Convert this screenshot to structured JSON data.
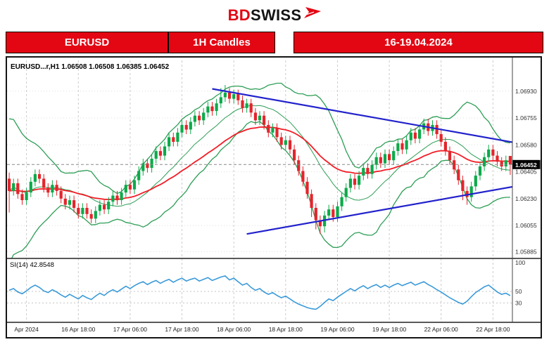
{
  "header": {
    "logo_bd": "BD",
    "logo_swiss": "SWISS"
  },
  "banner": {
    "symbol": "EURUSD",
    "timeframe": "1H Candles",
    "date_range": "16-19.04.2024"
  },
  "chart": {
    "info_label": "EURUSD...r,H1 1.06508 1.06508 1.06385 1.06452"
  },
  "chart_data": {
    "type": "candlestick",
    "title": "EURUSD 1H Candles 16-19.04.2024",
    "symbol": "EURUSD",
    "timeframe": "H1",
    "ohlc_display": {
      "open": "1.06508",
      "high": "1.06508",
      "low": "1.06385",
      "close": "1.06452"
    },
    "current_price": "1.06452",
    "x_axis": {
      "labels": [
        "Apr 2024",
        "16 Apr 18:00",
        "17 Apr 06:00",
        "17 Apr 18:00",
        "18 Apr 06:00",
        "18 Apr 18:00",
        "19 Apr 06:00",
        "19 Apr 18:00",
        "22 Apr 06:00",
        "22 Apr 18:00"
      ],
      "label_indices": [
        4,
        16,
        28,
        40,
        52,
        64,
        76,
        88,
        100,
        112
      ]
    },
    "y_axis": {
      "tick_labels": [
        "1.06930",
        "1.06755",
        "1.06580",
        "1.06405",
        "1.06230",
        "1.06055",
        "1.05885"
      ],
      "range": [
        1.0585,
        1.0713
      ]
    },
    "candles": [
      [
        1.0636,
        1.064,
        1.0614,
        1.0628
      ],
      [
        1.0628,
        1.0636,
        1.0625,
        1.0633
      ],
      [
        1.0633,
        1.0636,
        1.0623,
        1.0626
      ],
      [
        1.0626,
        1.0629,
        1.0619,
        1.0622
      ],
      [
        1.0622,
        1.063,
        1.0619,
        1.0627
      ],
      [
        1.0627,
        1.0637,
        1.0624,
        1.0634
      ],
      [
        1.0634,
        1.0642,
        1.0631,
        1.0639
      ],
      [
        1.0639,
        1.0642,
        1.0633,
        1.0636
      ],
      [
        1.0636,
        1.0639,
        1.0627,
        1.063
      ],
      [
        1.063,
        1.0633,
        1.0624,
        1.0627
      ],
      [
        1.0627,
        1.0635,
        1.0624,
        1.0632
      ],
      [
        1.0632,
        1.0635,
        1.0625,
        1.0628
      ],
      [
        1.0628,
        1.0631,
        1.062,
        1.0623
      ],
      [
        1.0623,
        1.0626,
        1.0616,
        1.0619
      ],
      [
        1.0619,
        1.0625,
        1.0616,
        1.0622
      ],
      [
        1.0622,
        1.0625,
        1.0614,
        1.0617
      ],
      [
        1.0617,
        1.062,
        1.061,
        1.0613
      ],
      [
        1.0613,
        1.062,
        1.061,
        1.0617
      ],
      [
        1.0617,
        1.062,
        1.061,
        1.0613
      ],
      [
        1.0613,
        1.0616,
        1.0607,
        1.061
      ],
      [
        1.061,
        1.0618,
        1.0607,
        1.0615
      ],
      [
        1.0615,
        1.0622,
        1.0612,
        1.0619
      ],
      [
        1.0619,
        1.0622,
        1.0613,
        1.0616
      ],
      [
        1.0616,
        1.0624,
        1.0613,
        1.0621
      ],
      [
        1.0621,
        1.0628,
        1.0618,
        1.0625
      ],
      [
        1.0625,
        1.0628,
        1.0619,
        1.0622
      ],
      [
        1.0622,
        1.063,
        1.0619,
        1.0627
      ],
      [
        1.0627,
        1.0635,
        1.0624,
        1.0632
      ],
      [
        1.0632,
        1.0635,
        1.0626,
        1.0629
      ],
      [
        1.0629,
        1.0638,
        1.0626,
        1.0635
      ],
      [
        1.0635,
        1.0644,
        1.0632,
        1.0641
      ],
      [
        1.0641,
        1.0649,
        1.0638,
        1.0646
      ],
      [
        1.0646,
        1.0649,
        1.064,
        1.0643
      ],
      [
        1.0643,
        1.0652,
        1.064,
        1.0649
      ],
      [
        1.0649,
        1.0657,
        1.0646,
        1.0654
      ],
      [
        1.0654,
        1.0657,
        1.0648,
        1.0651
      ],
      [
        1.0651,
        1.066,
        1.0648,
        1.0657
      ],
      [
        1.0657,
        1.0666,
        1.0654,
        1.0663
      ],
      [
        1.0663,
        1.0666,
        1.0657,
        1.066
      ],
      [
        1.066,
        1.0669,
        1.0657,
        1.0666
      ],
      [
        1.0666,
        1.0674,
        1.0663,
        1.0671
      ],
      [
        1.0671,
        1.0674,
        1.0665,
        1.0668
      ],
      [
        1.0668,
        1.0676,
        1.0665,
        1.0673
      ],
      [
        1.0673,
        1.068,
        1.067,
        1.0677
      ],
      [
        1.0677,
        1.068,
        1.0671,
        1.0674
      ],
      [
        1.0674,
        1.0682,
        1.0671,
        1.0679
      ],
      [
        1.0679,
        1.0686,
        1.0676,
        1.0683
      ],
      [
        1.0683,
        1.0686,
        1.0677,
        1.068
      ],
      [
        1.068,
        1.0688,
        1.0677,
        1.0685
      ],
      [
        1.0685,
        1.0695,
        1.0682,
        1.0689
      ],
      [
        1.0689,
        1.0697,
        1.0686,
        1.0692
      ],
      [
        1.0692,
        1.0695,
        1.0685,
        1.0688
      ],
      [
        1.0688,
        1.0694,
        1.0685,
        1.0691
      ],
      [
        1.0691,
        1.0694,
        1.0684,
        1.0687
      ],
      [
        1.0687,
        1.069,
        1.0679,
        1.0682
      ],
      [
        1.0682,
        1.0688,
        1.0679,
        1.0685
      ],
      [
        1.0685,
        1.0688,
        1.0676,
        1.0679
      ],
      [
        1.0679,
        1.0682,
        1.0671,
        1.0674
      ],
      [
        1.0674,
        1.068,
        1.0671,
        1.0677
      ],
      [
        1.0677,
        1.068,
        1.0668,
        1.0671
      ],
      [
        1.0671,
        1.0674,
        1.0663,
        1.0666
      ],
      [
        1.0666,
        1.0672,
        1.0663,
        1.0669
      ],
      [
        1.0669,
        1.0672,
        1.066,
        1.0663
      ],
      [
        1.0663,
        1.0666,
        1.0655,
        1.0658
      ],
      [
        1.0658,
        1.0664,
        1.0655,
        1.0661
      ],
      [
        1.0661,
        1.0664,
        1.0652,
        1.0655
      ],
      [
        1.0655,
        1.0658,
        1.0645,
        1.0648
      ],
      [
        1.0648,
        1.0651,
        1.0638,
        1.0641
      ],
      [
        1.0641,
        1.0644,
        1.0631,
        1.0634
      ],
      [
        1.0634,
        1.0637,
        1.0623,
        1.0626
      ],
      [
        1.0626,
        1.0629,
        1.0611,
        1.0617
      ],
      [
        1.0617,
        1.062,
        1.0603,
        1.0609
      ],
      [
        1.0609,
        1.0612,
        1.06,
        1.0605
      ],
      [
        1.0605,
        1.0615,
        1.0601,
        1.0612
      ],
      [
        1.0612,
        1.0619,
        1.0609,
        1.0616
      ],
      [
        1.0616,
        1.0619,
        1.0608,
        1.0611
      ],
      [
        1.0611,
        1.0621,
        1.0608,
        1.0618
      ],
      [
        1.0618,
        1.0627,
        1.0615,
        1.0624
      ],
      [
        1.0624,
        1.0633,
        1.0621,
        1.063
      ],
      [
        1.063,
        1.0639,
        1.0627,
        1.0636
      ],
      [
        1.0636,
        1.0639,
        1.0629,
        1.0632
      ],
      [
        1.0632,
        1.0641,
        1.0629,
        1.0638
      ],
      [
        1.0638,
        1.0646,
        1.0635,
        1.0643
      ],
      [
        1.0643,
        1.0646,
        1.0636,
        1.0639
      ],
      [
        1.0639,
        1.0648,
        1.0636,
        1.0645
      ],
      [
        1.0645,
        1.0653,
        1.0642,
        1.065
      ],
      [
        1.065,
        1.0653,
        1.0643,
        1.0646
      ],
      [
        1.0646,
        1.0655,
        1.0643,
        1.0652
      ],
      [
        1.0652,
        1.0655,
        1.0645,
        1.0648
      ],
      [
        1.0648,
        1.0657,
        1.0645,
        1.0654
      ],
      [
        1.0654,
        1.0662,
        1.0651,
        1.0659
      ],
      [
        1.0659,
        1.0662,
        1.0652,
        1.0655
      ],
      [
        1.0655,
        1.0664,
        1.0652,
        1.0661
      ],
      [
        1.0661,
        1.0669,
        1.0658,
        1.0666
      ],
      [
        1.0666,
        1.0669,
        1.0659,
        1.0662
      ],
      [
        1.0662,
        1.0671,
        1.0659,
        1.0668
      ],
      [
        1.0668,
        1.0675,
        1.0665,
        1.0672
      ],
      [
        1.0672,
        1.0675,
        1.0664,
        1.0667
      ],
      [
        1.0667,
        1.0674,
        1.0664,
        1.0671
      ],
      [
        1.0671,
        1.0674,
        1.0662,
        1.0665
      ],
      [
        1.0665,
        1.0668,
        1.0657,
        1.066
      ],
      [
        1.066,
        1.0663,
        1.0651,
        1.0654
      ],
      [
        1.0654,
        1.0657,
        1.0645,
        1.0648
      ],
      [
        1.0648,
        1.0651,
        1.0639,
        1.0642
      ],
      [
        1.0642,
        1.0645,
        1.0632,
        1.0635
      ],
      [
        1.0635,
        1.0638,
        1.0622,
        1.0628
      ],
      [
        1.0628,
        1.0631,
        1.0619,
        1.0624
      ],
      [
        1.0624,
        1.0634,
        1.0621,
        1.0631
      ],
      [
        1.0631,
        1.0641,
        1.0628,
        1.0638
      ],
      [
        1.0638,
        1.0647,
        1.0635,
        1.0644
      ],
      [
        1.0644,
        1.0653,
        1.0641,
        1.065
      ],
      [
        1.065,
        1.0658,
        1.0647,
        1.0655
      ],
      [
        1.0655,
        1.0658,
        1.0648,
        1.0651
      ],
      [
        1.0651,
        1.0654,
        1.0644,
        1.0647
      ],
      [
        1.0647,
        1.065,
        1.0641,
        1.0644
      ],
      [
        1.0644,
        1.0651,
        1.0641,
        1.0648
      ],
      [
        1.06508,
        1.06508,
        1.06385,
        1.06452
      ]
    ],
    "overlays": {
      "bollinger": {
        "type": "bollinger-bands",
        "period": 14,
        "deviations": 2,
        "color": "#2d9e56"
      },
      "ma": {
        "type": "moving-average",
        "period": 30,
        "color": "#f31c26"
      },
      "trendlines": [
        {
          "name": "descending-resistance",
          "from_index": 47,
          "from_price": 1.06945,
          "to_index": 117,
          "to_price": 1.06595,
          "color": "#2222cc"
        },
        {
          "name": "ascending-support",
          "from_index": 55,
          "from_price": 1.06,
          "to_index": 117,
          "to_price": 1.0631,
          "color": "#2222cc"
        }
      ]
    },
    "rsi": {
      "label": "SI(14) 42.8548",
      "period": 14,
      "current_value": 42.8548,
      "y_ticks": [
        "100",
        "50",
        "30"
      ],
      "range": [
        0,
        100
      ],
      "color": "#3a9ad9",
      "values": [
        52,
        55,
        49,
        46,
        51,
        57,
        61,
        57,
        51,
        48,
        53,
        49,
        44,
        40,
        45,
        41,
        37,
        43,
        39,
        36,
        42,
        47,
        43,
        49,
        53,
        49,
        54,
        59,
        55,
        60,
        64,
        67,
        62,
        66,
        69,
        64,
        68,
        71,
        66,
        70,
        73,
        68,
        71,
        73,
        68,
        71,
        74,
        69,
        72,
        75,
        77,
        70,
        73,
        67,
        61,
        64,
        57,
        52,
        55,
        49,
        45,
        48,
        43,
        39,
        42,
        37,
        32,
        28,
        25,
        22,
        20,
        19,
        24,
        31,
        37,
        34,
        40,
        45,
        50,
        55,
        51,
        56,
        60,
        55,
        59,
        62,
        57,
        61,
        57,
        61,
        64,
        60,
        63,
        66,
        61,
        64,
        67,
        62,
        58,
        53,
        49,
        44,
        39,
        35,
        31,
        28,
        33,
        41,
        48,
        53,
        58,
        61,
        55,
        49,
        45,
        47,
        42.85
      ]
    },
    "colors": {
      "up": "#0caa4a",
      "down": "#e3252c",
      "badge_bg": "#000000",
      "badge_text": "#ffffff",
      "grid": "#cccccc"
    }
  }
}
